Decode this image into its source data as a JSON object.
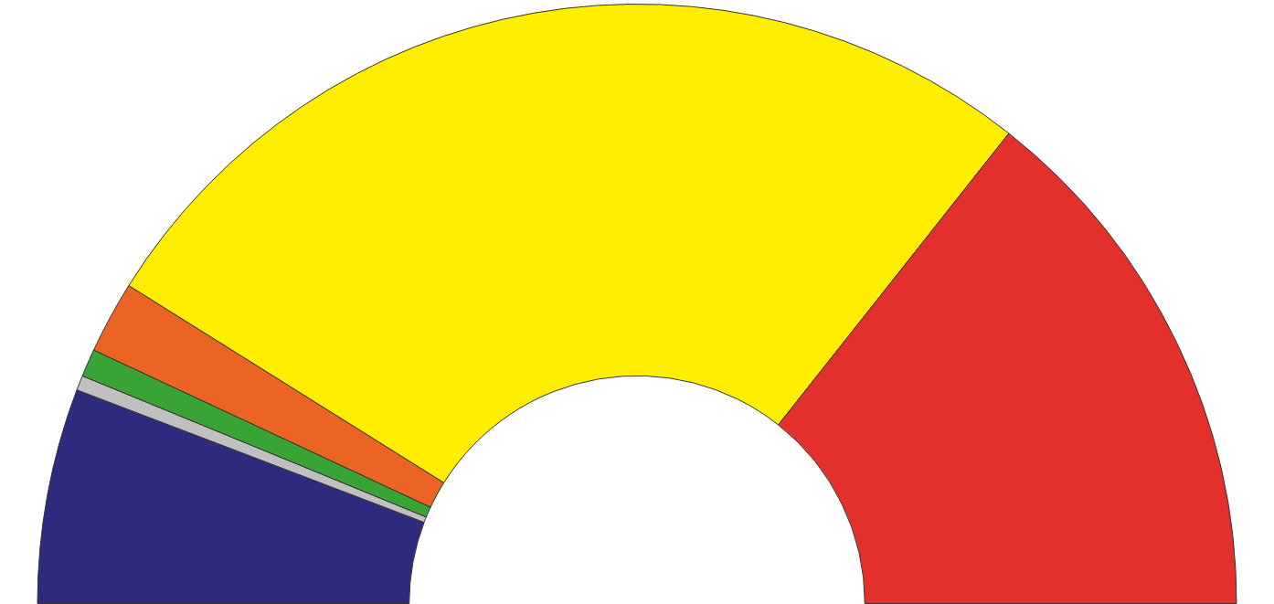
{
  "chart_data": {
    "type": "donut",
    "categories": [
      null,
      null,
      null,
      null,
      null,
      null
    ],
    "values": [
      11.6,
      0.8,
      1.5,
      3.9,
      53.5,
      28.7
    ],
    "colors": [
      "#2e2a7e",
      "#c0c0c0",
      "#3aa335",
      "#ec6424",
      "#ffee00",
      "#e3302c"
    ]
  }
}
